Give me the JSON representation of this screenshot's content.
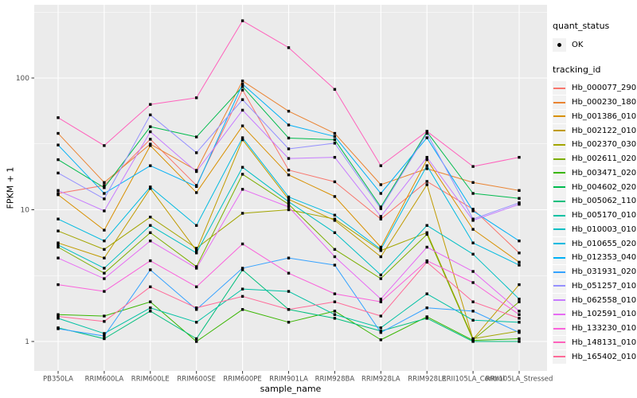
{
  "chart_data": {
    "type": "line",
    "title": "",
    "xlabel": "sample_name",
    "ylabel": "FPKM + 1",
    "y_scale": "log10",
    "y_ticks": [
      1,
      10,
      100
    ],
    "ylim": [
      0.6,
      340
    ],
    "grid": "on",
    "legend_position": "right",
    "point_marker": "black-square",
    "categories": [
      "PB350LA",
      "RRIM600LA",
      "RRIM600LE",
      "RRIM600SE",
      "RRIM600PE",
      "RRIM901LA",
      "RRIM928BA",
      "RRIM928LA",
      "RRIM928LE",
      "RRII105LA_Control",
      "RRII105LA_Stressed"
    ],
    "series": [
      {
        "name": "Hb_000077_290",
        "color": "#F8766D",
        "values": [
          13.3,
          15.3,
          34.3,
          15.3,
          81,
          20,
          16.3,
          8.5,
          16.4,
          10.1,
          4.7
        ]
      },
      {
        "name": "Hb_000230_180",
        "color": "#EA8331",
        "values": [
          38,
          16.1,
          31.5,
          19.9,
          95,
          56,
          38,
          15.5,
          20.5,
          16.1,
          14
        ]
      },
      {
        "name": "Hb_001386_010",
        "color": "#D89000",
        "values": [
          13,
          7,
          30.7,
          13.5,
          43.3,
          18.4,
          12.6,
          5.2,
          24,
          7.1,
          4
        ]
      },
      {
        "name": "Hb_002122_010",
        "color": "#C09B00",
        "values": [
          5.6,
          4.3,
          14.5,
          4.9,
          34,
          12,
          8.3,
          4.4,
          15.5,
          1.04,
          2.7
        ]
      },
      {
        "name": "Hb_002370_030",
        "color": "#A3A500",
        "values": [
          6.9,
          5,
          8.8,
          5.1,
          9.4,
          10,
          8.5,
          4.9,
          6.7,
          1.05,
          1.2
        ]
      },
      {
        "name": "Hb_002611_020",
        "color": "#7CAE00",
        "values": [
          5.2,
          3.3,
          6.7,
          3.7,
          18.6,
          11,
          5,
          3,
          6.5,
          1.03,
          2
        ]
      },
      {
        "name": "Hb_003471_020",
        "color": "#39B600",
        "values": [
          1.6,
          1.56,
          2,
          1,
          1.75,
          1.4,
          1.7,
          1.03,
          1.54,
          1.02,
          1.05
        ]
      },
      {
        "name": "Hb_004602_020",
        "color": "#00BB4E",
        "values": [
          24,
          14.7,
          42.7,
          35.7,
          86,
          35,
          34,
          10.5,
          39,
          13.3,
          12.2
        ]
      },
      {
        "name": "Hb_005062_110",
        "color": "#00BF7D",
        "values": [
          1.27,
          1.05,
          1.7,
          1.05,
          3.5,
          1.75,
          1.5,
          1.2,
          1.5,
          1,
          1
        ]
      },
      {
        "name": "Hb_005170_010",
        "color": "#00C1A3",
        "values": [
          1.5,
          1.15,
          1.8,
          1.4,
          2.5,
          2.4,
          1.6,
          1.27,
          2.3,
          1.45,
          1.4
        ]
      },
      {
        "name": "Hb_010003_010",
        "color": "#00BFC4",
        "values": [
          5.4,
          3.6,
          7.6,
          4.7,
          21,
          11.5,
          6.7,
          3.2,
          7.6,
          4.6,
          2.1
        ]
      },
      {
        "name": "Hb_010655_020",
        "color": "#00BAE0",
        "values": [
          8.5,
          5.8,
          14.9,
          7.6,
          35.2,
          12.5,
          9.1,
          5,
          21.6,
          5.6,
          3.8
        ]
      },
      {
        "name": "Hb_012353_040",
        "color": "#00B0F6",
        "values": [
          31,
          13.3,
          21.6,
          15,
          90,
          44,
          36,
          13.3,
          35.2,
          9.8,
          5.8
        ]
      },
      {
        "name": "Hb_031931_020",
        "color": "#35A2FF",
        "values": [
          1.25,
          1.1,
          3.5,
          1.75,
          3.6,
          4.3,
          3.8,
          1.17,
          1.8,
          1.7,
          1.17
        ]
      },
      {
        "name": "Hb_051257_010",
        "color": "#9590FF",
        "values": [
          19,
          12.1,
          52.5,
          27.1,
          68.5,
          29,
          32,
          10.2,
          38,
          8.5,
          11.3
        ]
      },
      {
        "name": "Hb_062558_010",
        "color": "#C77CFF",
        "values": [
          14,
          9.8,
          39.1,
          19.5,
          57,
          24.5,
          25,
          8.9,
          25,
          8.3,
          11
        ]
      },
      {
        "name": "Hb_102591_010",
        "color": "#E76BF3",
        "values": [
          4.3,
          3,
          5.8,
          3.6,
          14.3,
          10.5,
          4.4,
          2.1,
          5.2,
          3.4,
          1.7
        ]
      },
      {
        "name": "Hb_133230_010",
        "color": "#FA62DB",
        "values": [
          2.7,
          2.4,
          4.1,
          2.6,
          5.5,
          3.3,
          2.3,
          2,
          4.1,
          2.8,
          1.6
        ]
      },
      {
        "name": "Hb_148131_010",
        "color": "#FF62BC",
        "values": [
          50,
          30.7,
          63,
          70.8,
          272,
          170,
          82,
          21.6,
          39.4,
          21.3,
          25
        ]
      },
      {
        "name": "Hb_165402_010",
        "color": "#FF6A98",
        "values": [
          1.55,
          1.42,
          2.6,
          1.8,
          2.2,
          1.75,
          2,
          1.56,
          4,
          2,
          1.5
        ]
      }
    ]
  },
  "legend": {
    "quant_status_title": "quant_status",
    "quant_status_ok_label": "OK",
    "quant_status_ok_marker": "black-point-icon",
    "tracking_id_title": "tracking_id"
  },
  "colors": {
    "panel_bg": "#EBEBEB",
    "grid": "#FFFFFF",
    "tick_text": "#4D4D4D",
    "axis_title_text": "#000000",
    "point": "#000000",
    "legend_key_bg": "#F2F2F2"
  }
}
